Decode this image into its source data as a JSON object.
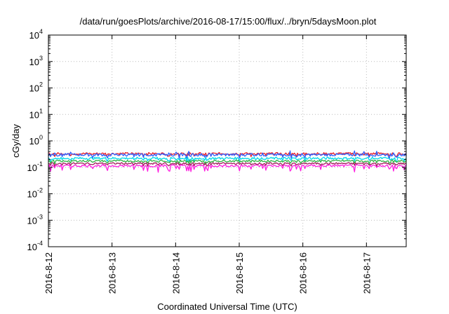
{
  "chart_data": {
    "type": "line",
    "title": "/data/run/goesPlots/archive/2016-08-17/15:00/flux/../bryn/5daysMoon.plot",
    "xlabel": "Coordinated Universal Time (UTC)",
    "ylabel": "cGy/day",
    "yscale": "log",
    "ylim": [
      0.0001,
      10000
    ],
    "xlim": [
      "2016-08-12T00:00",
      "2016-08-17T15:00"
    ],
    "grid": true,
    "legend": "none",
    "yticks": [
      {
        "value": 0.0001,
        "base": "10",
        "exp": "-4"
      },
      {
        "value": 0.001,
        "base": "10",
        "exp": "-3"
      },
      {
        "value": 0.01,
        "base": "10",
        "exp": "-2"
      },
      {
        "value": 0.1,
        "base": "10",
        "exp": "-1"
      },
      {
        "value": 1,
        "base": "10",
        "exp": "0"
      },
      {
        "value": 10,
        "base": "10",
        "exp": "1"
      },
      {
        "value": 100,
        "base": "10",
        "exp": "2"
      },
      {
        "value": 1000,
        "base": "10",
        "exp": "3"
      },
      {
        "value": 10000,
        "base": "10",
        "exp": "4"
      }
    ],
    "xticks": [
      {
        "value": "2016-08-12T00:00",
        "label": "2016-8-12"
      },
      {
        "value": "2016-08-13T00:00",
        "label": "2016-8-13"
      },
      {
        "value": "2016-08-14T00:00",
        "label": "2016-8-14"
      },
      {
        "value": "2016-08-15T00:00",
        "label": "2016-8-15"
      },
      {
        "value": "2016-08-16T00:00",
        "label": "2016-8-16"
      },
      {
        "value": "2016-08-17T00:00",
        "label": "2016-8-17"
      }
    ],
    "series": [
      {
        "color": "#e8202a",
        "base": 0.33,
        "dip": 0.18,
        "jitter": 0.1
      },
      {
        "color": "#2f5fff",
        "base": 0.3,
        "dip": 0.25,
        "jitter": 0.12
      },
      {
        "color": "#00d8e8",
        "base": 0.22,
        "dip": 0.22,
        "jitter": 0.1
      },
      {
        "color": "#2fb344",
        "base": 0.175,
        "dip": 0.18,
        "jitter": 0.08
      },
      {
        "color": "#a0205a",
        "base": 0.14,
        "dip": 0.18,
        "jitter": 0.08
      },
      {
        "color": "#ff1ee0",
        "base": 0.115,
        "dip": 0.4,
        "jitter": 0.1
      }
    ]
  }
}
